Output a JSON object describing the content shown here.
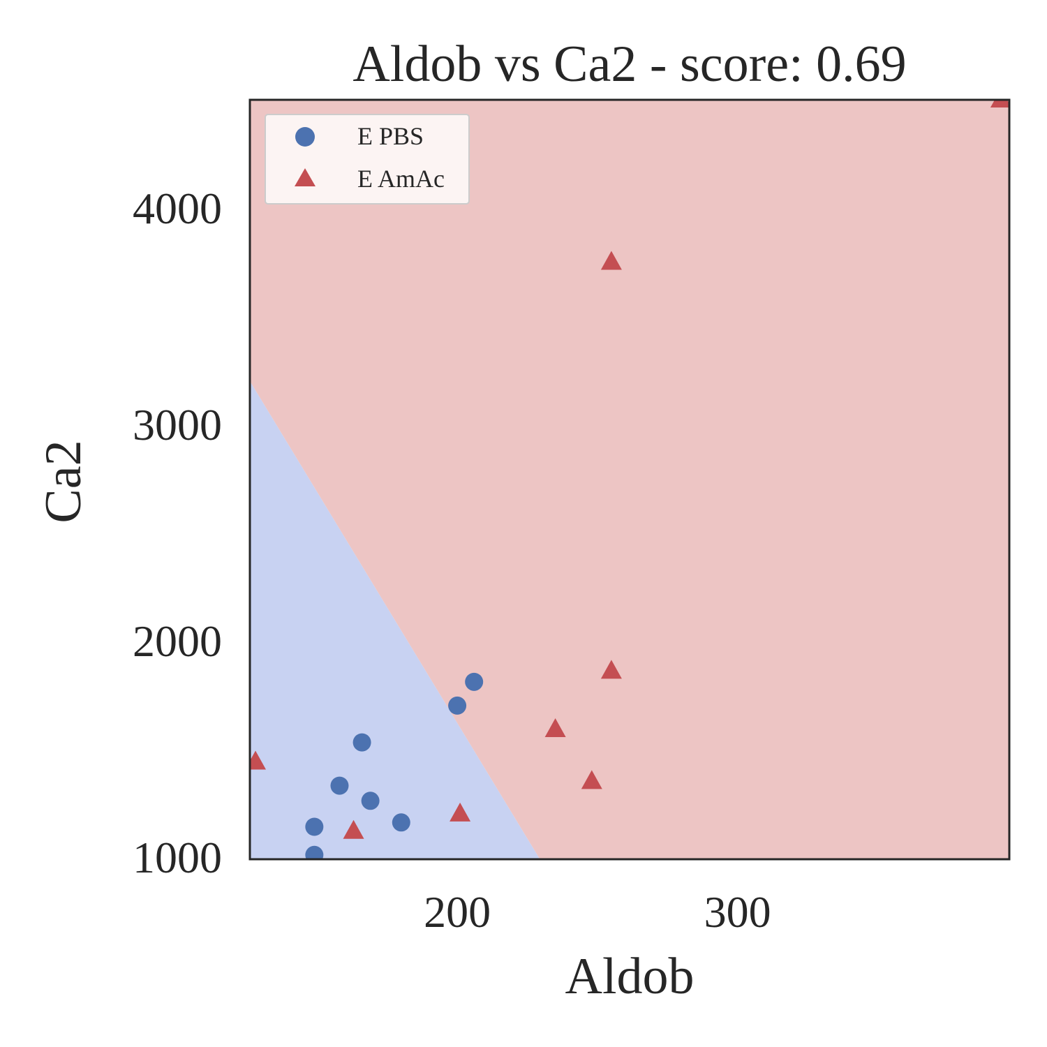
{
  "chart_data": {
    "type": "scatter",
    "title": "Aldob vs Ca2 - score: 0.69",
    "xlabel": "Aldob",
    "ylabel": "Ca2",
    "xlim": [
      126,
      397
    ],
    "ylim": [
      990,
      4500
    ],
    "xticks": [
      200,
      300
    ],
    "yticks": [
      1000,
      2000,
      3000,
      4000
    ],
    "grid": false,
    "legend_position": "top-left",
    "decision_boundary": {
      "line": [
        [
          126,
          3200
        ],
        [
          229.5,
          990
        ]
      ],
      "colors": {
        "E PBS": "#c8d2f2",
        "E AmAc": "#edc5c4"
      }
    },
    "series": [
      {
        "name": "E PBS",
        "marker": "circle",
        "color": "#4c72b0",
        "points": [
          [
            149,
            1010
          ],
          [
            149,
            1140
          ],
          [
            158,
            1330
          ],
          [
            166,
            1530
          ],
          [
            169,
            1260
          ],
          [
            180,
            1160
          ],
          [
            200,
            1700
          ],
          [
            206,
            1810
          ]
        ]
      },
      {
        "name": "E AmAc",
        "marker": "triangle",
        "color": "#c44e52",
        "points": [
          [
            128,
            1440
          ],
          [
            163,
            1120
          ],
          [
            201,
            1200
          ],
          [
            235,
            1590
          ],
          [
            248,
            1350
          ],
          [
            255,
            1860
          ],
          [
            255,
            3750
          ],
          [
            394,
            4500
          ]
        ]
      }
    ]
  }
}
